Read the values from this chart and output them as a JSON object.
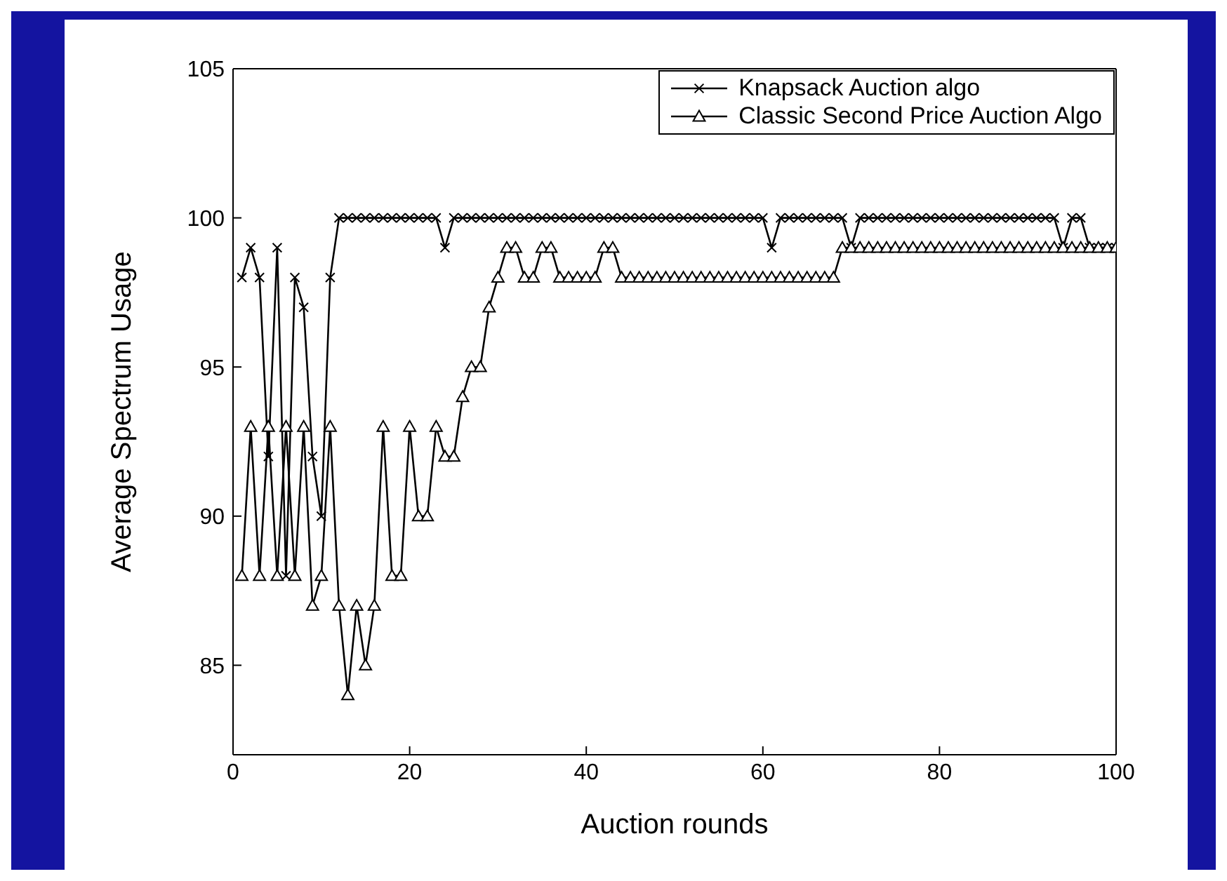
{
  "chart_data": {
    "type": "line",
    "xlabel": "Auction rounds",
    "ylabel": "Average Spectrum Usage",
    "x": [
      1,
      2,
      3,
      4,
      5,
      6,
      7,
      8,
      9,
      10,
      11,
      12,
      13,
      14,
      15,
      16,
      17,
      18,
      19,
      20,
      21,
      22,
      23,
      24,
      25,
      26,
      27,
      28,
      29,
      30,
      31,
      32,
      33,
      34,
      35,
      36,
      37,
      38,
      39,
      40,
      41,
      42,
      43,
      44,
      45,
      46,
      47,
      48,
      49,
      50,
      51,
      52,
      53,
      54,
      55,
      56,
      57,
      58,
      59,
      60,
      61,
      62,
      63,
      64,
      65,
      66,
      67,
      68,
      69,
      70,
      71,
      72,
      73,
      74,
      75,
      76,
      77,
      78,
      79,
      80,
      81,
      82,
      83,
      84,
      85,
      86,
      87,
      88,
      89,
      90,
      91,
      92,
      93,
      94,
      95,
      96,
      97,
      98,
      99,
      100
    ],
    "series": [
      {
        "name": "Knapsack Auction algo",
        "color": "#000000",
        "marker": "cross",
        "values": [
          98,
          99,
          98,
          92,
          99,
          88,
          98,
          97,
          92,
          90,
          98,
          100,
          100,
          100,
          100,
          100,
          100,
          100,
          100,
          100,
          100,
          100,
          100,
          99,
          100,
          100,
          100,
          100,
          100,
          100,
          100,
          100,
          100,
          100,
          100,
          100,
          100,
          100,
          100,
          100,
          100,
          100,
          100,
          100,
          100,
          100,
          100,
          100,
          100,
          100,
          100,
          100,
          100,
          100,
          100,
          100,
          100,
          100,
          100,
          100,
          99,
          100,
          100,
          100,
          100,
          100,
          100,
          100,
          100,
          99,
          100,
          100,
          100,
          100,
          100,
          100,
          100,
          100,
          100,
          100,
          100,
          100,
          100,
          100,
          100,
          100,
          100,
          100,
          100,
          100,
          100,
          100,
          100,
          99,
          100,
          100,
          99,
          99,
          99,
          99
        ]
      },
      {
        "name": "Classic Second Price Auction Algo",
        "color": "#000000",
        "marker": "triangle",
        "values": [
          88,
          93,
          88,
          93,
          88,
          93,
          88,
          93,
          87,
          88,
          93,
          87,
          84,
          87,
          85,
          87,
          93,
          88,
          88,
          93,
          90,
          90,
          93,
          92,
          92,
          94,
          95,
          95,
          97,
          98,
          99,
          99,
          98,
          98,
          99,
          99,
          98,
          98,
          98,
          98,
          98,
          99,
          99,
          98,
          98,
          98,
          98,
          98,
          98,
          98,
          98,
          98,
          98,
          98,
          98,
          98,
          98,
          98,
          98,
          98,
          98,
          98,
          98,
          98,
          98,
          98,
          98,
          98,
          99,
          99,
          99,
          99,
          99,
          99,
          99,
          99,
          99,
          99,
          99,
          99,
          99,
          99,
          99,
          99,
          99,
          99,
          99,
          99,
          99,
          99,
          99,
          99,
          99,
          99,
          99,
          99,
          99,
          99,
          99,
          99
        ]
      }
    ],
    "xlim": [
      0,
      100
    ],
    "xticks": [
      0,
      20,
      40,
      60,
      80,
      100
    ],
    "ylim": [
      82,
      105
    ],
    "yticks": [
      85,
      90,
      95,
      100,
      105
    ],
    "grid": false,
    "legend": "top right",
    "line_style": "solid"
  }
}
